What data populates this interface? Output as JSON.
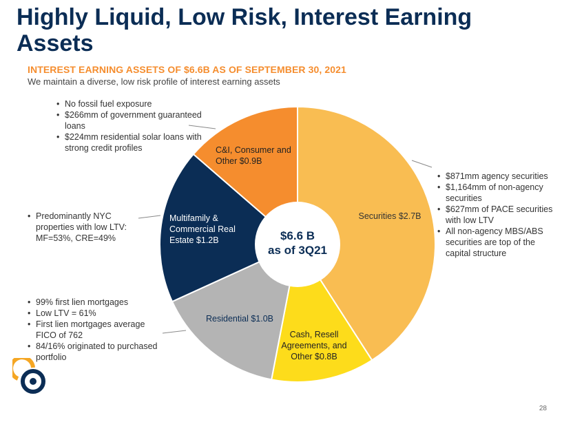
{
  "header": {
    "title": "Highly Liquid, Low Risk, Interest Earning Assets",
    "subtitle": "INTEREST EARNING ASSETS OF $6.6B AS OF SEPTEMBER 30, 2021",
    "description": "We maintain a diverse, low risk profile of interest earning assets"
  },
  "notes": {
    "ci": [
      "No fossil fuel exposure",
      "$266mm of government guaranteed loans",
      "$224mm residential solar loans with strong credit profiles"
    ],
    "securities": [
      "$871mm agency securities",
      "$1,164mm of non-agency securities",
      "$627mm of PACE securities with low LTV",
      "All non-agency MBS/ABS securities are top of the capital structure"
    ],
    "multifamily": [
      "Predominantly NYC properties with low LTV: MF=53%, CRE=49%"
    ],
    "residential": [
      "99% first lien mortgages",
      "Low LTV = 61%",
      "First lien mortgages average FICO of 762",
      "84/16% originated to purchased portfolio"
    ]
  },
  "chart_data": {
    "type": "pie",
    "variant": "donut",
    "title": "INTEREST EARNING ASSETS OF $6.6B AS OF SEPTEMBER 30, 2021",
    "center_label": [
      "$6.6 B",
      "as of 3Q21"
    ],
    "total": 6.6,
    "units": "$B",
    "slices": [
      {
        "name": "Securities",
        "value": 2.7,
        "label": "Securities $2.7B",
        "color": "#f9bd52"
      },
      {
        "name": "Cash, Resell Agreements, and Other",
        "value": 0.8,
        "label": "Cash, Resell Agreements, and Other $0.8B",
        "color": "#fddc1b"
      },
      {
        "name": "Residential",
        "value": 1.0,
        "label": "Residential $1.0B",
        "color": "#b4b4b4"
      },
      {
        "name": "Multifamily & Commercial Real Estate",
        "value": 1.2,
        "label": "Multifamily & Commercial Real Estate $1.2B",
        "color": "#0b2d55"
      },
      {
        "name": "C&I, Consumer and Other",
        "value": 0.9,
        "label": "C&I, Consumer and Other $0.9B",
        "color": "#f58d2e"
      }
    ]
  },
  "colors": {
    "title": "#0b2d55",
    "accent": "#f58d2e",
    "logo_orange": "#f5a623",
    "logo_navy": "#0b2d55"
  },
  "footer": {
    "page_number": "28"
  }
}
